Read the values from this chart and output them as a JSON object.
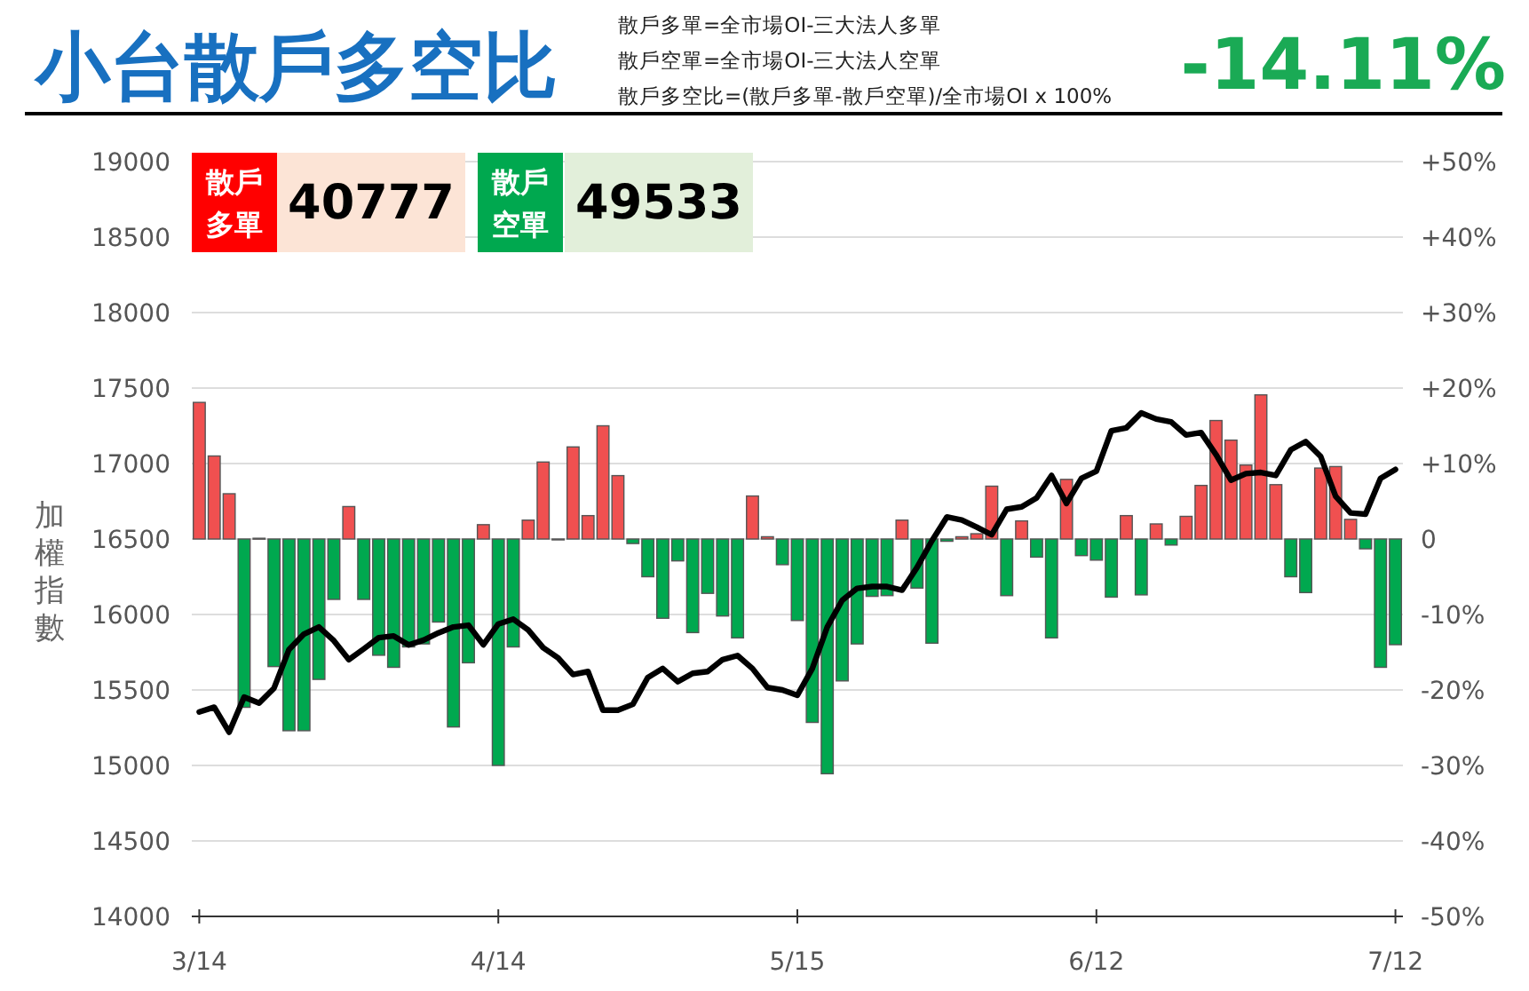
{
  "chart_data": {
    "type": "bar",
    "title": "小台散戶多空比",
    "annotations": [
      "散戶多單=全市場OI-三大法人多單",
      "散戶空單=全市場OI-三大法人空單",
      "散戶多空比=(散戶多單-散戶空單)/全市場OI x 100%",
      "-14.11%",
      "散戶多單",
      "40777",
      "散戶空單",
      "49533"
    ],
    "ylabel": "加權指數",
    "categories": [
      "3/14",
      null,
      null,
      null,
      null,
      null,
      null,
      null,
      null,
      null,
      null,
      null,
      null,
      null,
      null,
      null,
      null,
      null,
      null,
      null,
      "4/14",
      null,
      null,
      null,
      null,
      null,
      null,
      null,
      null,
      null,
      null,
      null,
      null,
      null,
      null,
      null,
      null,
      null,
      null,
      null,
      "5/15",
      null,
      null,
      null,
      null,
      null,
      null,
      null,
      null,
      null,
      null,
      null,
      null,
      null,
      null,
      null,
      null,
      null,
      null,
      null,
      "6/12",
      null,
      null,
      null,
      null,
      null,
      null,
      null,
      null,
      null,
      null,
      null,
      null,
      null,
      null,
      null,
      null,
      null,
      null,
      null,
      "7/12"
    ],
    "series": [
      {
        "axis": "y2",
        "values": [
          18.1,
          11.0,
          6.0,
          -22.3,
          0.1,
          -16.9,
          -25.4,
          -25.4,
          -18.6,
          -8.0,
          4.3,
          -8.0,
          -15.4,
          -17.0,
          -14.3,
          -13.9,
          -11.0,
          -24.9,
          -16.4,
          1.9,
          -30.0,
          -14.3,
          2.5,
          10.2,
          -0.1,
          12.2,
          3.1,
          15.0,
          8.4,
          -0.6,
          -5.0,
          -10.5,
          -2.9,
          -12.4,
          -7.2,
          -10.2,
          -13.1,
          5.7,
          0.3,
          -3.4,
          -10.8,
          -24.3,
          -31.1,
          -18.8,
          -13.9,
          -7.6,
          -7.5,
          2.5,
          -6.5,
          -13.8,
          -0.3,
          0.3,
          0.7,
          7.0,
          -7.5,
          2.4,
          -2.4,
          -13.1,
          7.9,
          -2.2,
          -2.8,
          -7.7,
          3.1,
          -7.4,
          2.0,
          -0.8,
          3.0,
          7.1,
          15.7,
          13.1,
          9.8,
          19.1,
          7.2,
          -5.0,
          -7.1,
          9.4,
          9.6,
          2.6,
          -1.3,
          -17.0,
          -14.0
        ],
        "colors": [
          "#f05050",
          "#f05050",
          "#f05050",
          "#00a84f",
          "#f05050",
          "#00a84f",
          "#00a84f",
          "#00a84f",
          "#00a84f",
          "#00a84f",
          "#f05050",
          "#00a84f",
          "#00a84f",
          "#00a84f",
          "#00a84f",
          "#00a84f",
          "#00a84f",
          "#00a84f",
          "#00a84f",
          "#f05050",
          "#00a84f",
          "#00a84f",
          "#f05050",
          "#f05050",
          "#00a84f",
          "#f05050",
          "#f05050",
          "#f05050",
          "#f05050",
          "#00a84f",
          "#00a84f",
          "#00a84f",
          "#00a84f",
          "#00a84f",
          "#00a84f",
          "#00a84f",
          "#00a84f",
          "#f05050",
          "#f05050",
          "#00a84f",
          "#00a84f",
          "#00a84f",
          "#00a84f",
          "#00a84f",
          "#00a84f",
          "#00a84f",
          "#00a84f",
          "#f05050",
          "#00a84f",
          "#00a84f",
          "#00a84f",
          "#f05050",
          "#f05050",
          "#f05050",
          "#00a84f",
          "#f05050",
          "#00a84f",
          "#00a84f",
          "#f05050",
          "#00a84f",
          "#00a84f",
          "#00a84f",
          "#f05050",
          "#00a84f",
          "#f05050",
          "#00a84f",
          "#f05050",
          "#f05050",
          "#f05050",
          "#f05050",
          "#f05050",
          "#f05050",
          "#f05050",
          "#00a84f",
          "#00a84f",
          "#f05050",
          "#f05050",
          "#f05050",
          "#00a84f",
          "#00a84f",
          "#00a84f"
        ]
      },
      {
        "type": "line",
        "color": "#000000",
        "values": [
          15354,
          15386,
          15220,
          15453,
          15413,
          15512,
          15768,
          15870,
          15917,
          15827,
          15701,
          15772,
          15846,
          15858,
          15799,
          15830,
          15878,
          15917,
          15929,
          15799,
          15937,
          15969,
          15898,
          15780,
          15713,
          15602,
          15622,
          15366,
          15366,
          15405,
          15583,
          15642,
          15555,
          15610,
          15622,
          15701,
          15728,
          15642,
          15516,
          15500,
          15465,
          15642,
          15917,
          16094,
          16173,
          16185,
          16185,
          16161,
          16311,
          16488,
          16646,
          16626,
          16579,
          16528,
          16697,
          16713,
          16772,
          16921,
          16736,
          16902,
          16949,
          17217,
          17236,
          17335,
          17295,
          17276,
          17189,
          17205,
          17059,
          16890,
          16933,
          16941,
          16921,
          17091,
          17146,
          17047,
          16783,
          16673,
          16665,
          16902,
          16961
        ]
      }
    ],
    "ylim": [
      14000,
      19000
    ],
    "yticks": [
      14000,
      14500,
      15000,
      15500,
      16000,
      16500,
      17000,
      17500,
      18000,
      18500,
      19000
    ],
    "y2lim": [
      -50,
      50
    ],
    "y2ticks": [
      {
        "value": -50,
        "label": "-50%"
      },
      {
        "value": -40,
        "label": "-40%"
      },
      {
        "value": -30,
        "label": "-30%"
      },
      {
        "value": -20,
        "label": "-20%"
      },
      {
        "value": -10,
        "label": "-10%"
      },
      0,
      {
        "value": 10,
        "label": "+10%"
      },
      {
        "value": 20,
        "label": "+20%"
      },
      {
        "value": 30,
        "label": "+30%"
      },
      {
        "value": 40,
        "label": "+40%"
      },
      {
        "value": 50,
        "label": "+50%"
      }
    ],
    "grid": "y"
  }
}
